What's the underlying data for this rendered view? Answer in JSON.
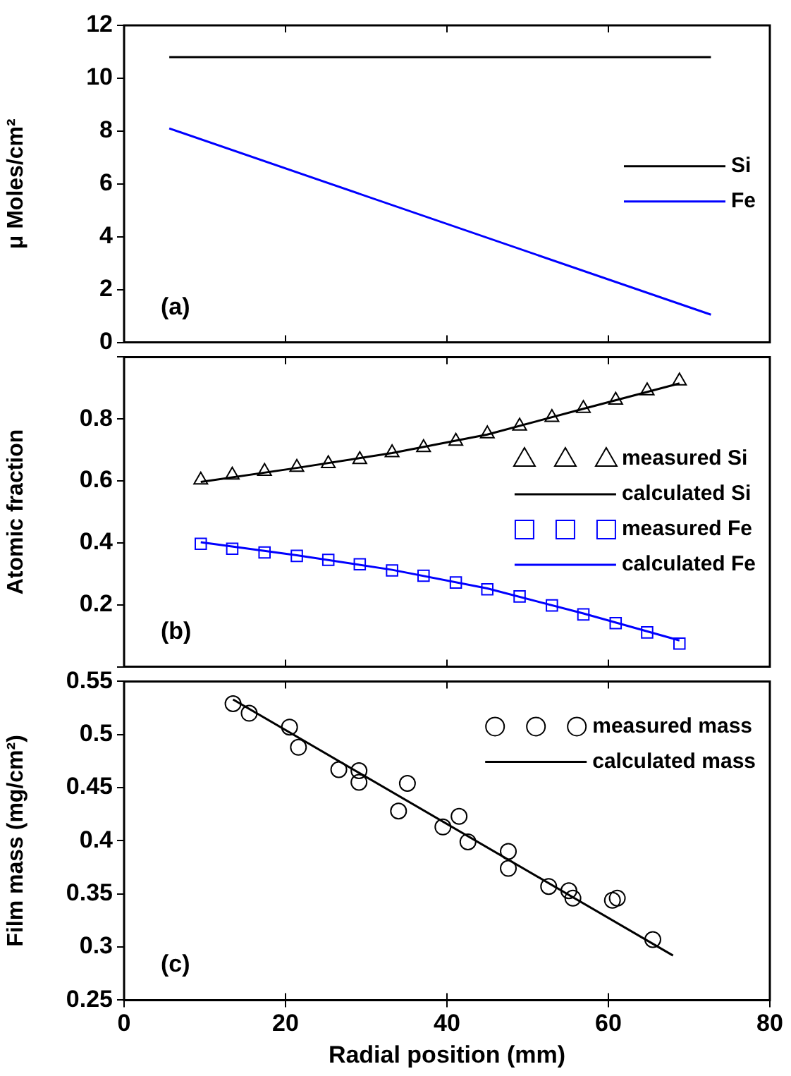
{
  "chart_data": [
    {
      "type": "line",
      "ylabel": "μ Moles/cm²",
      "xlim": [
        0,
        80
      ],
      "xticks": [
        0,
        20,
        40,
        60,
        80
      ],
      "ylim": [
        0,
        12
      ],
      "yticks": [
        0,
        2,
        4,
        6,
        8,
        10,
        12
      ],
      "tick_labels": "y",
      "legend": "right",
      "marker": "none",
      "annotations": [
        "(a)"
      ],
      "series": [
        {
          "name": "Si",
          "type": "line",
          "color": "#000000",
          "x": [
            5.6,
            72.7
          ],
          "values": [
            10.8,
            10.8
          ]
        },
        {
          "name": "Fe",
          "type": "line",
          "color": "#0000ff",
          "x": [
            5.6,
            72.7
          ],
          "values": [
            8.1,
            1.05
          ]
        }
      ]
    },
    {
      "type": "line",
      "ylabel": "Atomic fraction",
      "xlim": [
        0,
        80
      ],
      "xticks": [
        0,
        20,
        40,
        60,
        80
      ],
      "ylim": [
        0,
        1
      ],
      "yticks": [
        {
          "value": 0,
          "label": null
        },
        0.2,
        0.4,
        0.6,
        0.8,
        {
          "value": 1,
          "label": null
        }
      ],
      "tick_labels": "y",
      "legend": "right",
      "annotations": [
        "(b)"
      ],
      "series": [
        {
          "name": "measured Si",
          "type": "scatter",
          "marker": "triangle",
          "color": "#000000",
          "x": [
            9.5,
            13.4,
            17.4,
            21.4,
            25.3,
            29.2,
            33.2,
            37.1,
            41.1,
            45.0,
            49.0,
            53.0,
            56.9,
            60.9,
            64.8,
            68.8
          ],
          "values": [
            0.603,
            0.619,
            0.631,
            0.644,
            0.656,
            0.669,
            0.691,
            0.708,
            0.728,
            0.752,
            0.777,
            0.805,
            0.834,
            0.861,
            0.891,
            0.923
          ]
        },
        {
          "name": "calculated Si",
          "type": "line",
          "marker": "none",
          "color": "#000000",
          "x": [
            9.5,
            21.4,
            33.2,
            45.0,
            56.9,
            68.8
          ],
          "values": [
            0.597,
            0.642,
            0.69,
            0.75,
            0.833,
            0.915
          ]
        },
        {
          "name": "measured Fe",
          "type": "scatter",
          "marker": "square",
          "color": "#0000ff",
          "x": [
            9.5,
            13.4,
            17.4,
            21.4,
            25.3,
            29.2,
            33.2,
            37.1,
            41.1,
            45.0,
            49.0,
            53.0,
            56.9,
            60.9,
            64.8,
            68.8
          ],
          "values": [
            0.397,
            0.381,
            0.369,
            0.358,
            0.345,
            0.331,
            0.311,
            0.294,
            0.272,
            0.25,
            0.227,
            0.198,
            0.169,
            0.141,
            0.111,
            0.075
          ]
        },
        {
          "name": "calculated Fe",
          "type": "line",
          "marker": "none",
          "color": "#0000ff",
          "x": [
            9.5,
            21.4,
            33.2,
            45.0,
            56.9,
            68.8
          ],
          "values": [
            0.402,
            0.36,
            0.313,
            0.253,
            0.172,
            0.085
          ]
        }
      ]
    },
    {
      "type": "line",
      "xlabel": "Radial position (mm)",
      "ylabel": "Film mass (mg/cm²)",
      "xlim": [
        0,
        80
      ],
      "xticks": [
        0,
        20,
        40,
        60,
        80
      ],
      "ylim": [
        0.25,
        0.55
      ],
      "yticks": [
        0.25,
        0.3,
        0.35,
        0.4,
        0.45,
        0.5,
        0.55
      ],
      "legend": "top right",
      "annotations": [
        "(c)"
      ],
      "series": [
        {
          "name": "measured mass",
          "type": "scatter",
          "marker": "circle",
          "color": "#000000",
          "x": [
            13.5,
            15.5,
            20.5,
            21.6,
            26.6,
            29.1,
            29.1,
            35.1,
            34.0,
            39.5,
            41.5,
            42.6,
            47.6,
            47.6,
            52.6,
            55.1,
            55.6,
            60.5,
            61.1,
            65.5
          ],
          "values": [
            0.529,
            0.52,
            0.507,
            0.488,
            0.467,
            0.466,
            0.455,
            0.454,
            0.428,
            0.413,
            0.423,
            0.399,
            0.39,
            0.374,
            0.357,
            0.353,
            0.346,
            0.344,
            0.346,
            0.307
          ]
        },
        {
          "name": "calculated mass",
          "type": "line",
          "marker": "none",
          "color": "#000000",
          "x": [
            13.5,
            68.0
          ],
          "values": [
            0.533,
            0.292
          ]
        }
      ]
    }
  ]
}
